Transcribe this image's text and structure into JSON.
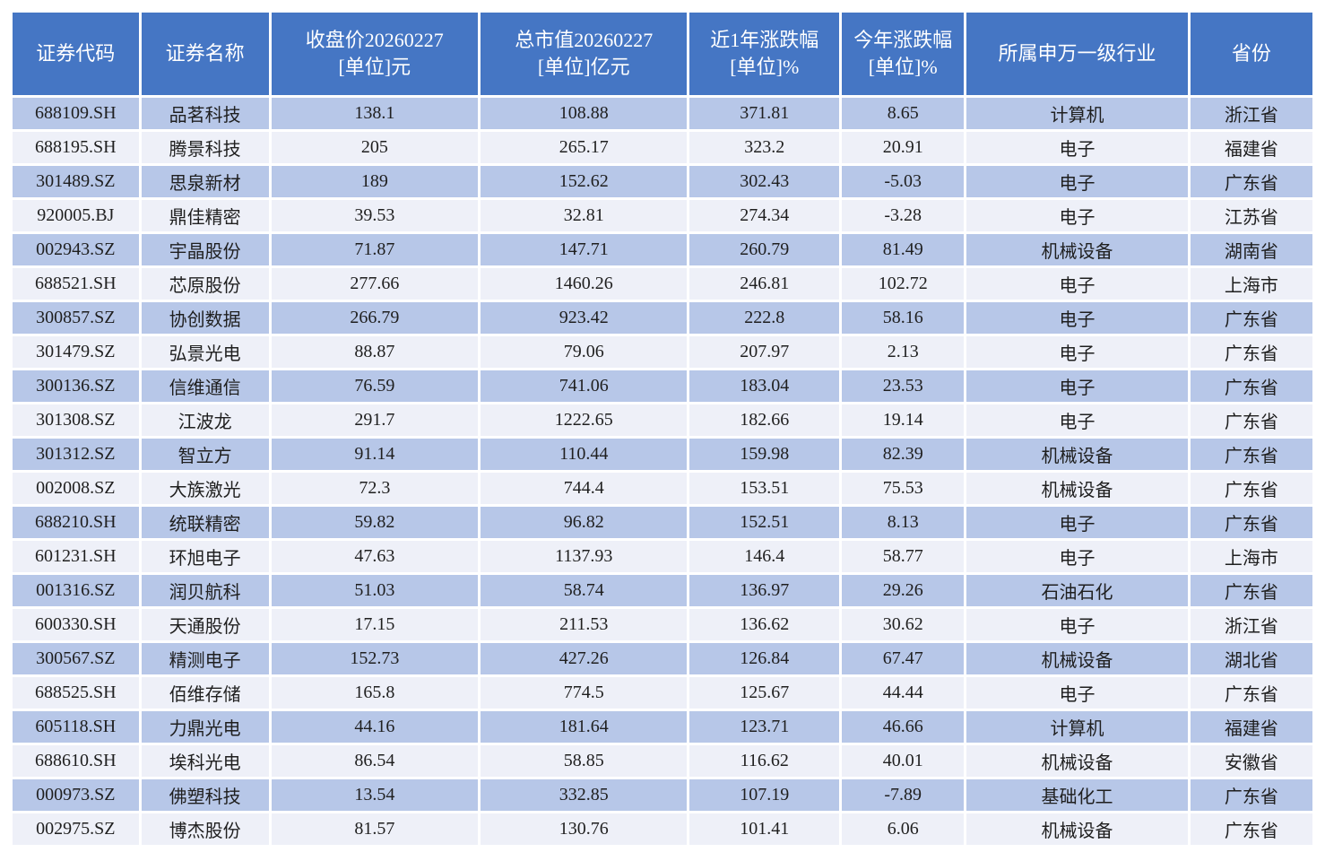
{
  "colors": {
    "page_background": "#ffffff",
    "header_bg": "#4576c4",
    "header_text": "#ffffff",
    "row_odd_bg": "#b7c7e8",
    "row_even_bg": "#eef0f8",
    "cell_text": "#1f1f1f",
    "cell_gap": "#ffffff"
  },
  "chart_data": {
    "type": "table",
    "title": "",
    "columns": [
      "证券代码",
      "证券名称",
      "收盘价20260227\n[单位]元",
      "总市值20260227\n[单位]亿元",
      "近1年涨跌幅\n[单位]%",
      "今年涨跌幅\n[单位]%",
      "所属申万一级行业",
      "省份"
    ],
    "rows": [
      [
        "688109.SH",
        "品茗科技",
        "138.1",
        "108.88",
        "371.81",
        "8.65",
        "计算机",
        "浙江省"
      ],
      [
        "688195.SH",
        "腾景科技",
        "205",
        "265.17",
        "323.2",
        "20.91",
        "电子",
        "福建省"
      ],
      [
        "301489.SZ",
        "思泉新材",
        "189",
        "152.62",
        "302.43",
        "-5.03",
        "电子",
        "广东省"
      ],
      [
        "920005.BJ",
        "鼎佳精密",
        "39.53",
        "32.81",
        "274.34",
        "-3.28",
        "电子",
        "江苏省"
      ],
      [
        "002943.SZ",
        "宇晶股份",
        "71.87",
        "147.71",
        "260.79",
        "81.49",
        "机械设备",
        "湖南省"
      ],
      [
        "688521.SH",
        "芯原股份",
        "277.66",
        "1460.26",
        "246.81",
        "102.72",
        "电子",
        "上海市"
      ],
      [
        "300857.SZ",
        "协创数据",
        "266.79",
        "923.42",
        "222.8",
        "58.16",
        "电子",
        "广东省"
      ],
      [
        "301479.SZ",
        "弘景光电",
        "88.87",
        "79.06",
        "207.97",
        "2.13",
        "电子",
        "广东省"
      ],
      [
        "300136.SZ",
        "信维通信",
        "76.59",
        "741.06",
        "183.04",
        "23.53",
        "电子",
        "广东省"
      ],
      [
        "301308.SZ",
        "江波龙",
        "291.7",
        "1222.65",
        "182.66",
        "19.14",
        "电子",
        "广东省"
      ],
      [
        "301312.SZ",
        "智立方",
        "91.14",
        "110.44",
        "159.98",
        "82.39",
        "机械设备",
        "广东省"
      ],
      [
        "002008.SZ",
        "大族激光",
        "72.3",
        "744.4",
        "153.51",
        "75.53",
        "机械设备",
        "广东省"
      ],
      [
        "688210.SH",
        "统联精密",
        "59.82",
        "96.82",
        "152.51",
        "8.13",
        "电子",
        "广东省"
      ],
      [
        "601231.SH",
        "环旭电子",
        "47.63",
        "1137.93",
        "146.4",
        "58.77",
        "电子",
        "上海市"
      ],
      [
        "001316.SZ",
        "润贝航科",
        "51.03",
        "58.74",
        "136.97",
        "29.26",
        "石油石化",
        "广东省"
      ],
      [
        "600330.SH",
        "天通股份",
        "17.15",
        "211.53",
        "136.62",
        "30.62",
        "电子",
        "浙江省"
      ],
      [
        "300567.SZ",
        "精测电子",
        "152.73",
        "427.26",
        "126.84",
        "67.47",
        "机械设备",
        "湖北省"
      ],
      [
        "688525.SH",
        "佰维存储",
        "165.8",
        "774.5",
        "125.67",
        "44.44",
        "电子",
        "广东省"
      ],
      [
        "605118.SH",
        "力鼎光电",
        "44.16",
        "181.64",
        "123.71",
        "46.66",
        "计算机",
        "福建省"
      ],
      [
        "688610.SH",
        "埃科光电",
        "86.54",
        "58.85",
        "116.62",
        "40.01",
        "机械设备",
        "安徽省"
      ],
      [
        "000973.SZ",
        "佛塑科技",
        "13.54",
        "332.85",
        "107.19",
        "-7.89",
        "基础化工",
        "广东省"
      ],
      [
        "002975.SZ",
        "博杰股份",
        "81.57",
        "130.76",
        "101.41",
        "6.06",
        "机械设备",
        "广东省"
      ]
    ]
  }
}
